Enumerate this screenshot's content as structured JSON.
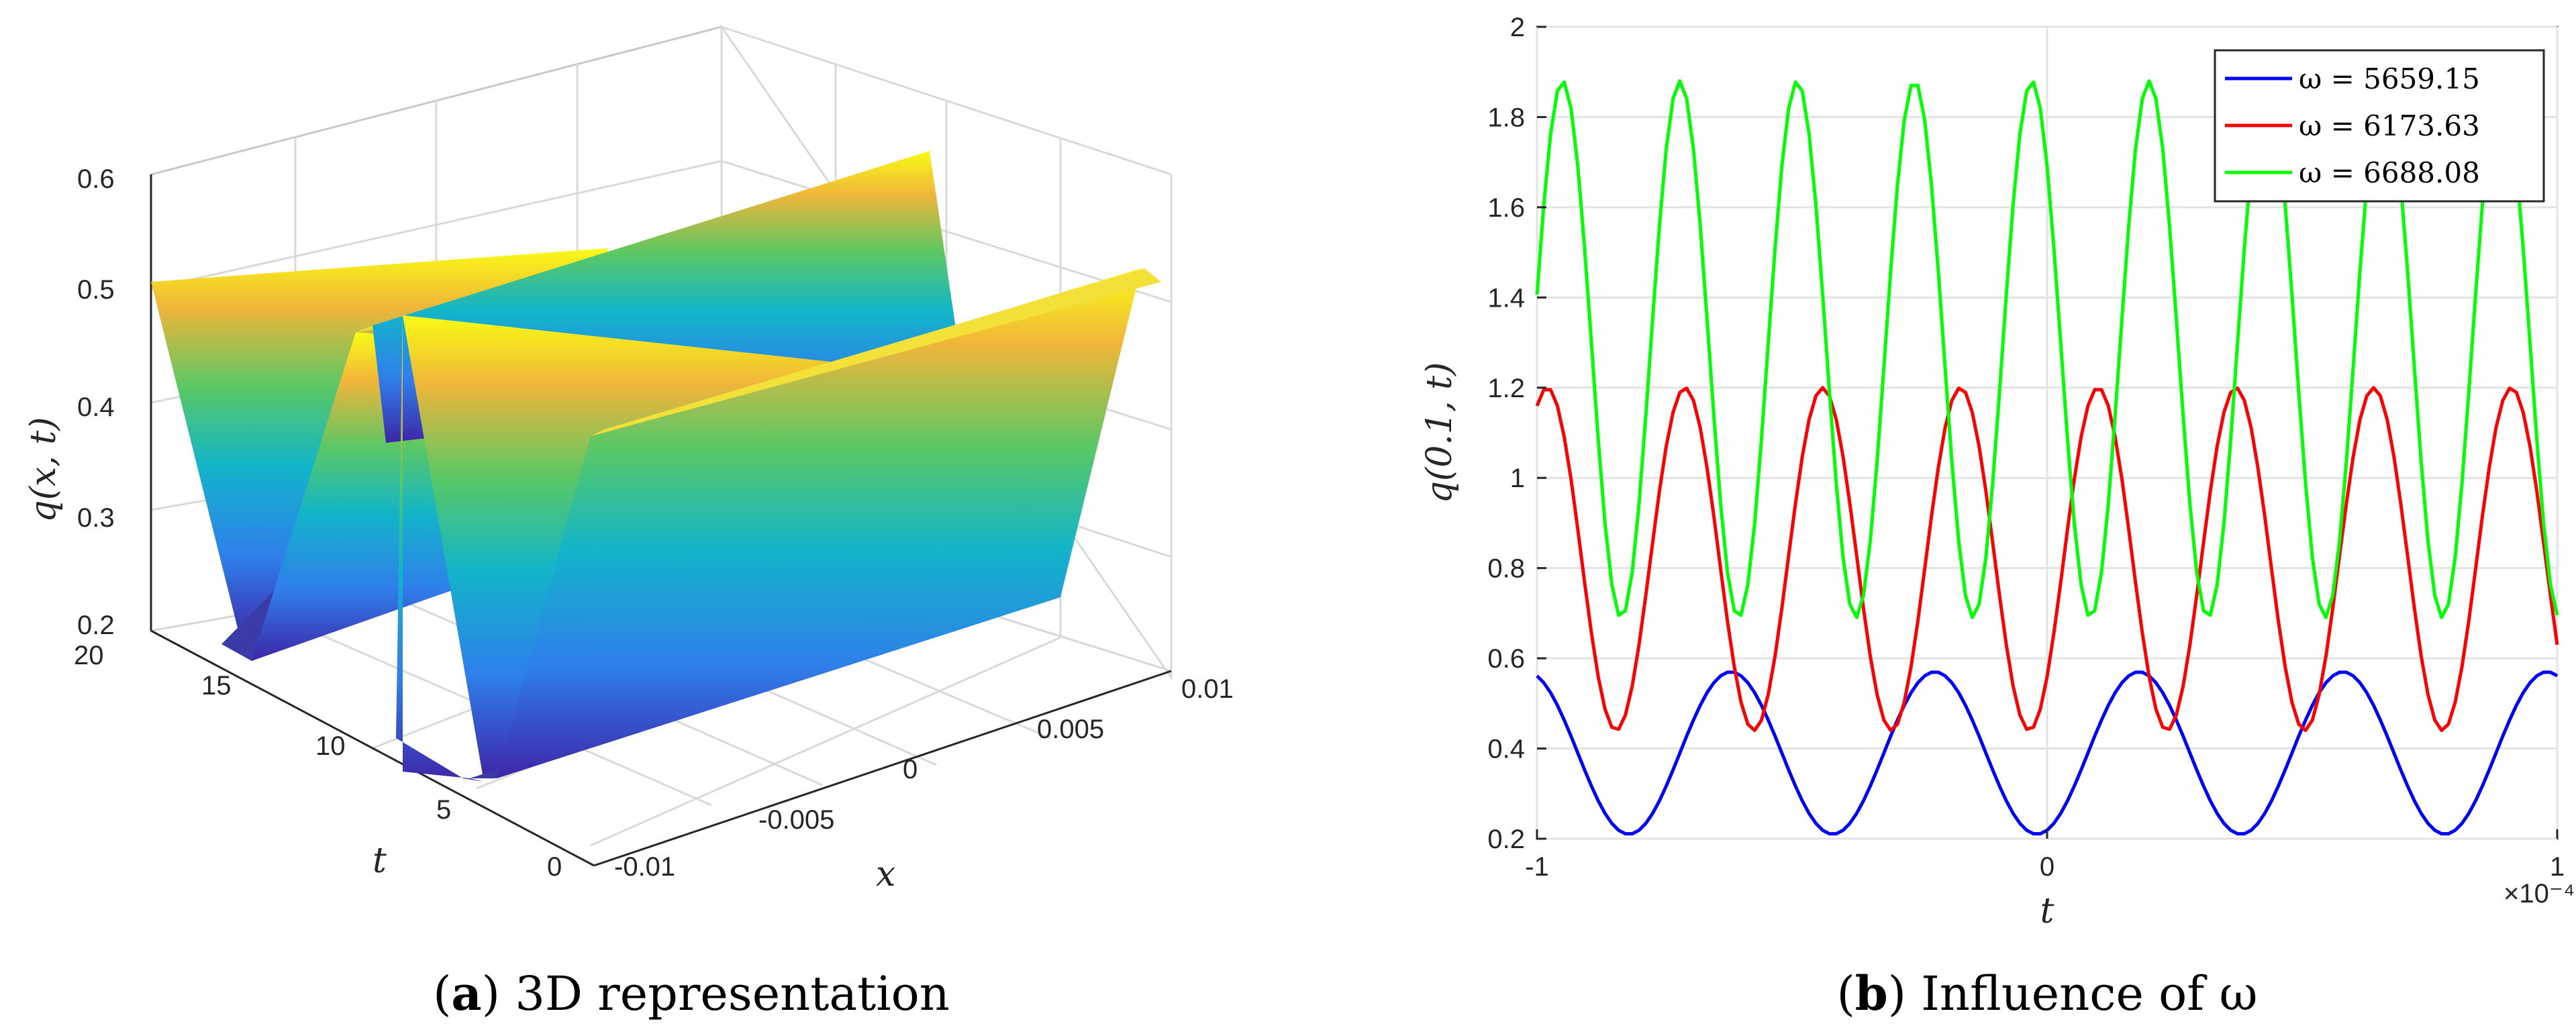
{
  "chart_data": [
    {
      "type": "surface3d",
      "caption_prefix": "(",
      "caption_letter": "a",
      "caption_rest": ") 3D representation",
      "zlabel": "q(x, t)",
      "xlabel": "x",
      "tlabel": "t",
      "z_ticks": [
        "0.2",
        "0.3",
        "0.4",
        "0.5",
        "0.6"
      ],
      "x_ticks": [
        "-0.01",
        "-0.005",
        "0",
        "0.005",
        "0.01"
      ],
      "t_ticks": [
        "0",
        "5",
        "10",
        "15",
        "20"
      ],
      "zlim": [
        0.2,
        0.6
      ],
      "xlim": [
        -0.01,
        0.01
      ],
      "tlim": [
        0,
        20
      ],
      "colormap": [
        "#3e26a8",
        "#2f7feb",
        "#12b5c9",
        "#5ac864",
        "#f0b53a",
        "#f9fb15"
      ]
    },
    {
      "type": "line",
      "caption_prefix": "(",
      "caption_letter": "b",
      "caption_rest": ") Influence of ω",
      "xlabel": "t",
      "ylabel": "q(0.1, t)",
      "x_exponent_label": "×10⁻⁴",
      "xlim": [
        -1,
        1
      ],
      "ylim": [
        0.2,
        2
      ],
      "x_ticks": [
        "-1",
        "0",
        "1"
      ],
      "y_ticks": [
        "0.2",
        "0.4",
        "0.6",
        "0.8",
        "1",
        "1.2",
        "1.4",
        "1.6",
        "1.8",
        "2"
      ],
      "grid": true,
      "legend_position": "top-right",
      "series": [
        {
          "name": "ω = 5659.15",
          "color": "#0000ff",
          "min": 0.21,
          "max": 0.57,
          "peaks_t": [
            -0.62,
            -0.22,
            0.18,
            0.58,
            0.98
          ]
        },
        {
          "name": "ω = 6173.63",
          "color": "#ff0000",
          "min": 0.44,
          "max": 1.2,
          "peaks_t": [
            -0.98,
            -0.71,
            -0.44,
            -0.16,
            0.12,
            0.39,
            0.67,
            0.95
          ]
        },
        {
          "name": "ω = 6688.08",
          "color": "#00ff00",
          "min": 0.69,
          "max": 1.88,
          "peaks_t": [
            -0.95,
            -0.72,
            -0.48,
            -0.25,
            -0.01,
            0.22,
            0.46,
            0.69,
            0.93
          ]
        }
      ]
    }
  ]
}
